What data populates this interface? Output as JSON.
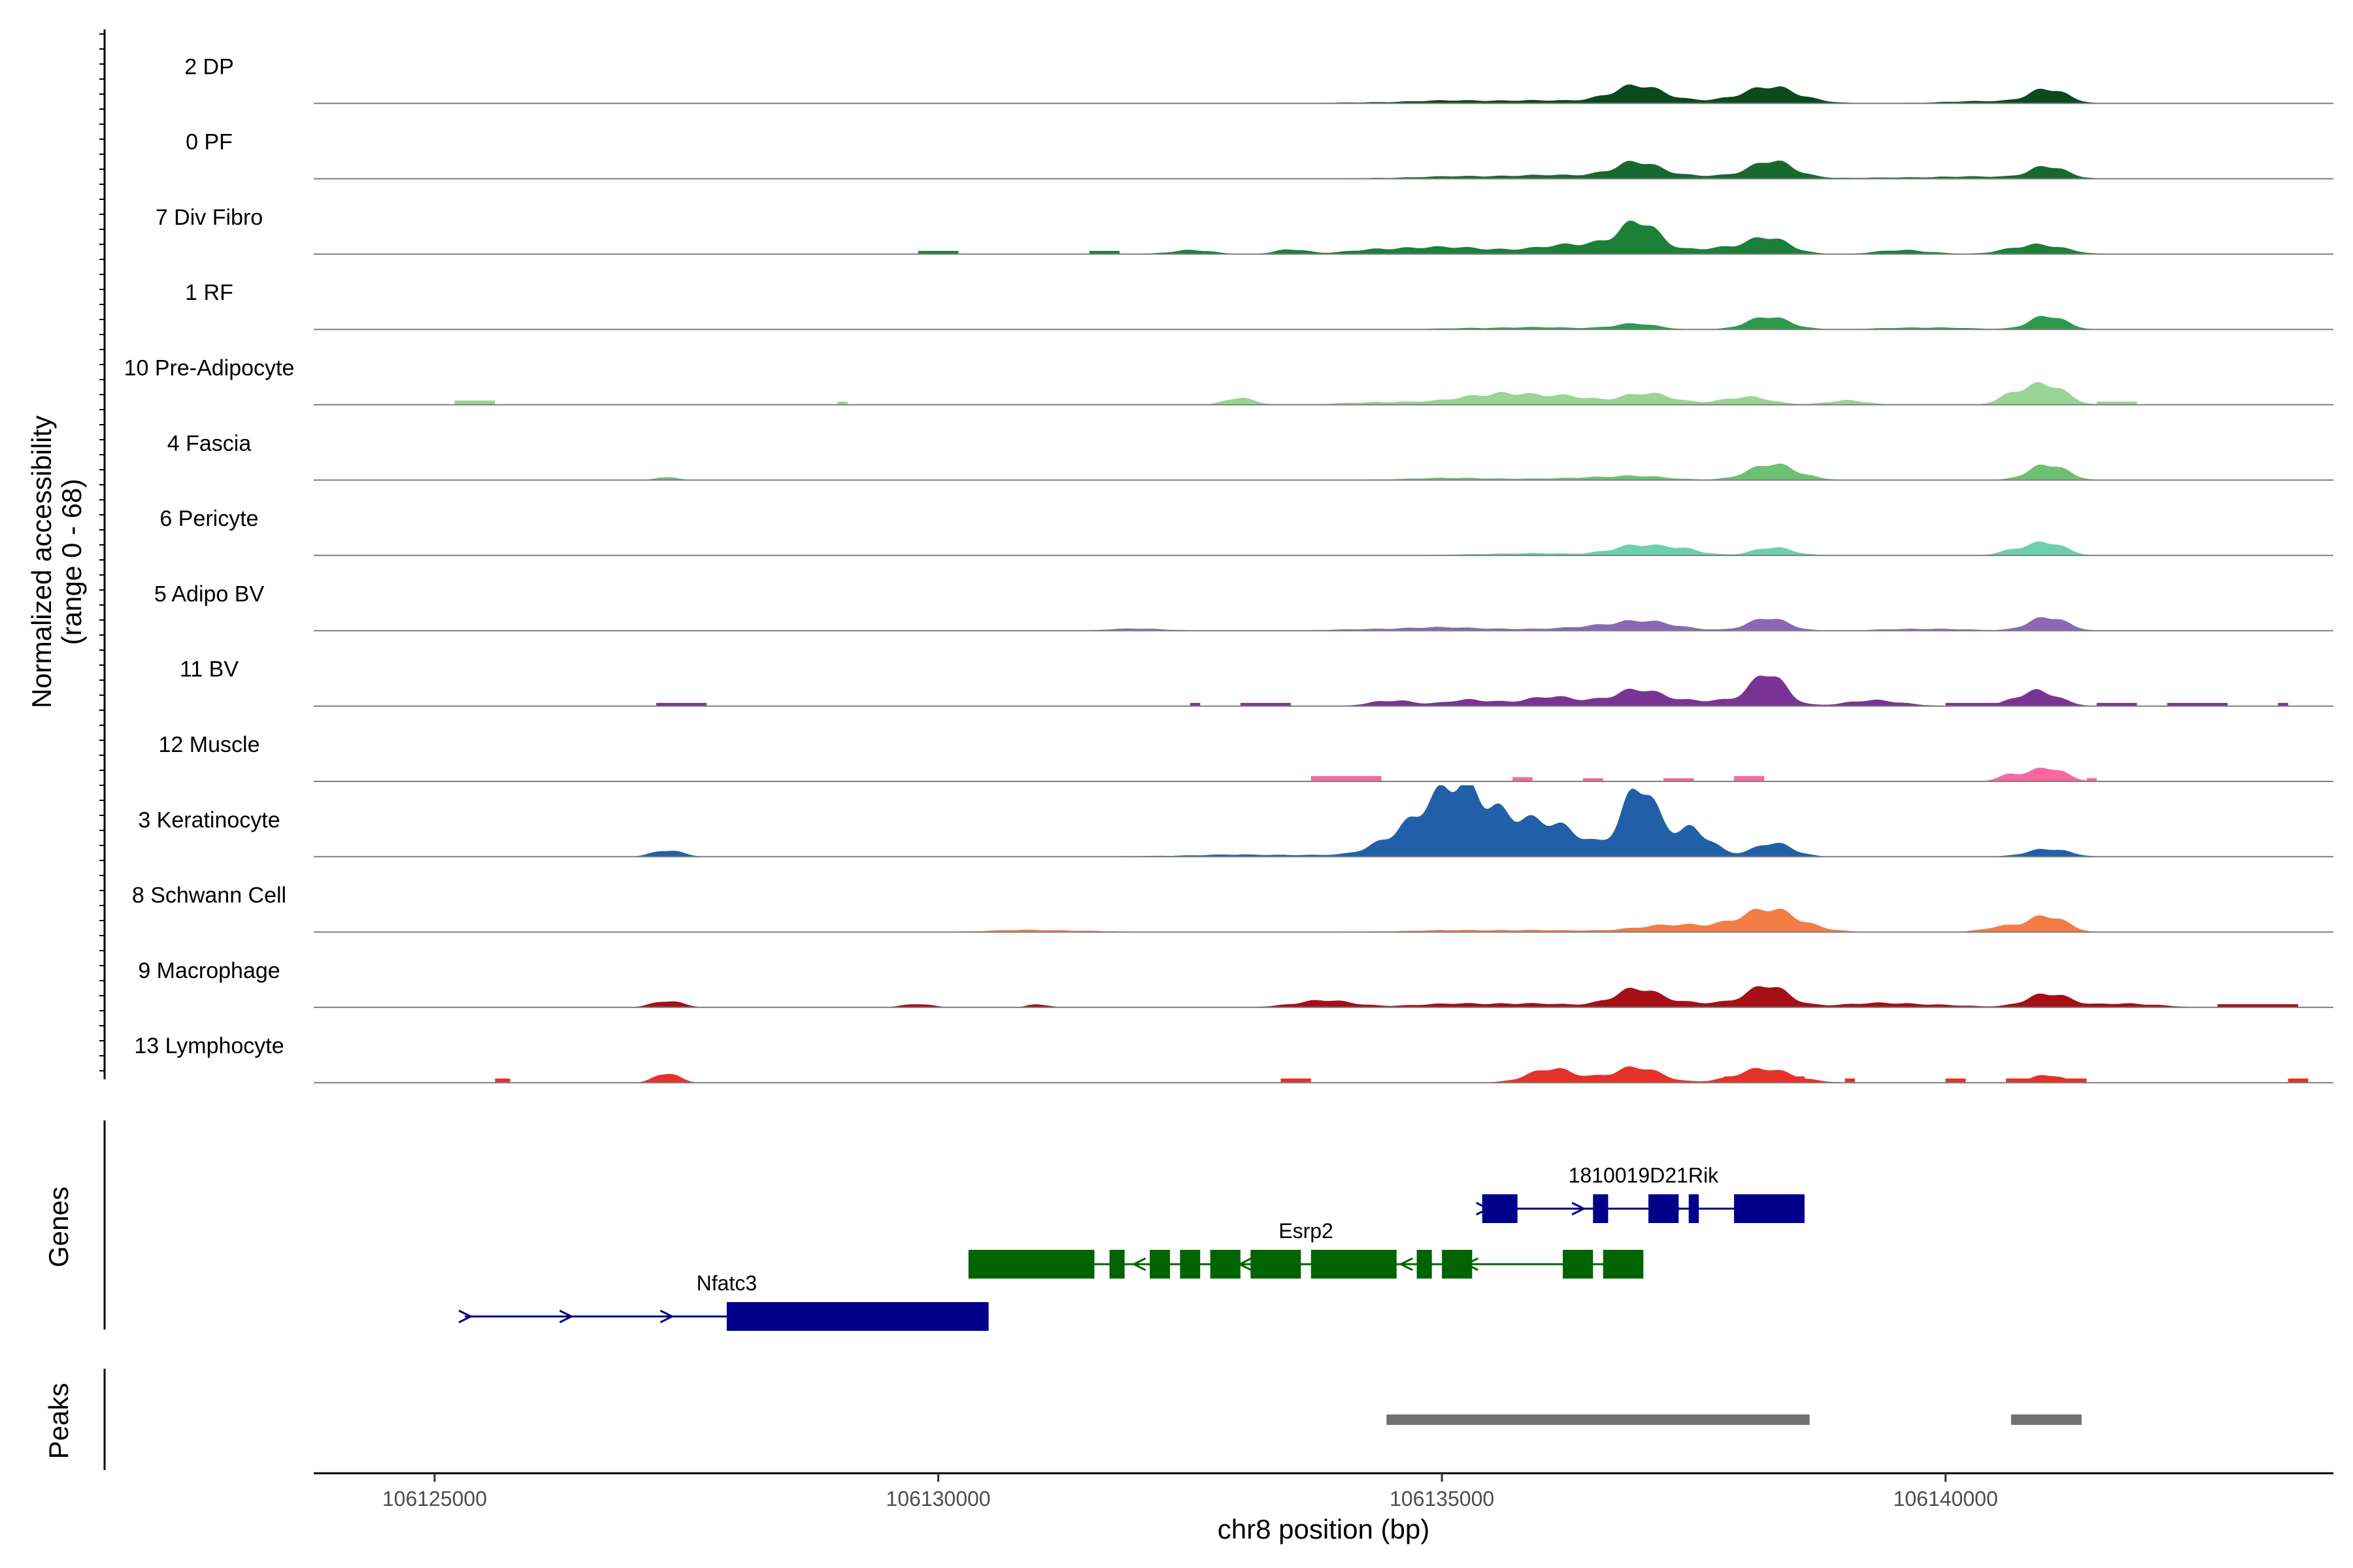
{
  "chart_data": {
    "type": "area",
    "subtype": "genome-coverage-tracks",
    "ylabel_lines": [
      "Normalized accessibility",
      "(range 0 - 68)"
    ],
    "y_range": [
      0,
      68
    ],
    "xlabel": "chr8 position (bp)",
    "x_range": [
      106123800,
      106143850
    ],
    "x_ticks": [
      106125000,
      106130000,
      106135000,
      106140000
    ],
    "x_tick_labels": [
      "106125000",
      "106130000",
      "106135000",
      "106140000"
    ],
    "genes_label": "Genes",
    "peaks_label": "Peaks",
    "tracks": [
      {
        "name": "2 DP",
        "color": "#0b4a1f",
        "peaks": [
          [
            106136900,
            250,
            14
          ],
          [
            106138300,
            280,
            13
          ],
          [
            106141000,
            180,
            14
          ],
          [
            106135500,
            900,
            3
          ],
          [
            106137600,
            600,
            3
          ],
          [
            106140400,
            500,
            2
          ]
        ],
        "blocks": []
      },
      {
        "name": "0 PF",
        "color": "#17692f",
        "peaks": [
          [
            106136900,
            220,
            12
          ],
          [
            106138300,
            220,
            14
          ],
          [
            106141000,
            170,
            12
          ],
          [
            106135800,
            900,
            3
          ],
          [
            106137500,
            700,
            3
          ],
          [
            106140200,
            700,
            2
          ]
        ],
        "blocks": []
      },
      {
        "name": "7 Div Fibro",
        "color": "#1c8038",
        "peaks": [
          [
            106136950,
            200,
            24
          ],
          [
            106136500,
            400,
            10
          ],
          [
            106138250,
            220,
            14
          ],
          [
            106137700,
            250,
            6
          ],
          [
            106140900,
            250,
            10
          ],
          [
            106135200,
            500,
            6
          ],
          [
            106133500,
            150,
            5
          ],
          [
            106132500,
            200,
            4
          ],
          [
            106134400,
            300,
            4
          ],
          [
            106139600,
            250,
            4
          ]
        ],
        "blocks": [
          [
            106129800,
            106130200,
            3
          ],
          [
            106131500,
            106131800,
            3
          ]
        ]
      },
      {
        "name": "1 RF",
        "color": "#2e9a4e",
        "peaks": [
          [
            106138250,
            220,
            11
          ],
          [
            106141000,
            170,
            14
          ],
          [
            106136900,
            220,
            5
          ],
          [
            106135800,
            600,
            2
          ],
          [
            106139800,
            400,
            2
          ]
        ],
        "blocks": []
      },
      {
        "name": "10 Pre-Adipocyte",
        "color": "#99d594",
        "peaks": [
          [
            106135600,
            350,
            12
          ],
          [
            106137000,
            300,
            10
          ],
          [
            106138000,
            250,
            7
          ],
          [
            106141000,
            180,
            20
          ],
          [
            106140700,
            150,
            10
          ],
          [
            106133000,
            150,
            6
          ],
          [
            106134500,
            400,
            3
          ],
          [
            106136300,
            200,
            6
          ],
          [
            106139000,
            200,
            4
          ]
        ],
        "blocks": [
          [
            106125200,
            106125600,
            4
          ],
          [
            106129000,
            106129100,
            3
          ],
          [
            106141500,
            106141900,
            3
          ]
        ]
      },
      {
        "name": "4 Fascia",
        "color": "#6dc173",
        "peaks": [
          [
            106138300,
            250,
            14
          ],
          [
            106141000,
            180,
            16
          ],
          [
            106136800,
            400,
            4
          ],
          [
            106135200,
            600,
            2
          ],
          [
            106127300,
            100,
            3
          ]
        ],
        "blocks": []
      },
      {
        "name": "6 Pericyte",
        "color": "#6ccfb0",
        "peaks": [
          [
            106136900,
            250,
            9
          ],
          [
            106137400,
            200,
            6
          ],
          [
            106138300,
            200,
            7
          ],
          [
            106141000,
            170,
            13
          ],
          [
            106140700,
            150,
            5
          ],
          [
            106135800,
            500,
            2
          ]
        ],
        "blocks": []
      },
      {
        "name": "5 Adipo BV",
        "color": "#8a68b3",
        "peaks": [
          [
            106136900,
            400,
            9
          ],
          [
            106138250,
            200,
            11
          ],
          [
            106141000,
            180,
            14
          ],
          [
            106135000,
            700,
            3
          ],
          [
            106132000,
            300,
            2
          ],
          [
            106139800,
            400,
            2
          ]
        ],
        "blocks": []
      },
      {
        "name": "11 BV",
        "color": "#7a3395",
        "peaks": [
          [
            106138250,
            170,
            26
          ],
          [
            106136900,
            250,
            14
          ],
          [
            106136100,
            300,
            8
          ],
          [
            106135300,
            250,
            6
          ],
          [
            106134500,
            200,
            6
          ],
          [
            106140900,
            200,
            16
          ],
          [
            106137700,
            400,
            6
          ],
          [
            106139300,
            300,
            5
          ]
        ],
        "blocks": [
          [
            106127200,
            106127700,
            3
          ],
          [
            106132500,
            106132600,
            3
          ],
          [
            106133000,
            106133500,
            3
          ],
          [
            106140000,
            106140600,
            3
          ],
          [
            106141500,
            106141900,
            3
          ],
          [
            106142200,
            106142800,
            3
          ],
          [
            106143300,
            106143400,
            3
          ]
        ]
      },
      {
        "name": "12 Muscle",
        "color": "#f768a1",
        "peaks": [
          [
            106141000,
            170,
            14
          ],
          [
            106140650,
            120,
            6
          ]
        ],
        "blocks": [
          [
            106133700,
            106134400,
            5
          ],
          [
            106135700,
            106135900,
            4
          ],
          [
            106136400,
            106136600,
            3
          ],
          [
            106137200,
            106137500,
            3
          ],
          [
            106137900,
            106138200,
            5
          ],
          [
            106141400,
            106141500,
            3
          ]
        ]
      },
      {
        "name": "3 Keratinocyte",
        "color": "#2160a8",
        "peaks": [
          [
            106135200,
            320,
            60
          ],
          [
            106136950,
            180,
            62
          ],
          [
            106134600,
            250,
            20
          ],
          [
            106135800,
            350,
            24
          ],
          [
            106136300,
            250,
            15
          ],
          [
            106137500,
            180,
            28
          ],
          [
            106138300,
            200,
            12
          ],
          [
            106141000,
            200,
            8
          ],
          [
            106127300,
            150,
            6
          ],
          [
            106133200,
            800,
            2
          ]
        ],
        "blocks": []
      },
      {
        "name": "8 Schwann Cell",
        "color": "#f47c45",
        "peaks": [
          [
            106138300,
            300,
            18
          ],
          [
            106137500,
            500,
            7
          ],
          [
            106141000,
            180,
            16
          ],
          [
            106140600,
            200,
            5
          ],
          [
            106135500,
            800,
            2
          ],
          [
            106131000,
            500,
            2
          ]
        ],
        "blocks": []
      },
      {
        "name": "9 Macrophage",
        "color": "#a50f15",
        "peaks": [
          [
            106136900,
            220,
            14
          ],
          [
            106138250,
            200,
            16
          ],
          [
            106141000,
            200,
            14
          ],
          [
            106133800,
            300,
            6
          ],
          [
            106135500,
            700,
            4
          ],
          [
            106137600,
            600,
            5
          ],
          [
            106139500,
            500,
            4
          ],
          [
            106141800,
            300,
            4
          ],
          [
            106127300,
            150,
            6
          ],
          [
            106129800,
            150,
            3
          ],
          [
            106131000,
            100,
            3
          ]
        ],
        "blocks": [
          [
            106142700,
            106143500,
            3
          ]
        ]
      },
      {
        "name": "13 Lymphocyte",
        "color": "#e53127",
        "peaks": [
          [
            106136900,
            250,
            14
          ],
          [
            106136100,
            250,
            12
          ],
          [
            106138200,
            300,
            12
          ],
          [
            106141000,
            150,
            8
          ],
          [
            106127300,
            120,
            9
          ]
        ],
        "blocks": [
          [
            106125600,
            106125750,
            4
          ],
          [
            106133400,
            106133700,
            4
          ],
          [
            106135900,
            106136600,
            5
          ],
          [
            106137800,
            106138600,
            6
          ],
          [
            106139000,
            106139100,
            4
          ],
          [
            106140000,
            106140200,
            4
          ],
          [
            106140600,
            106141400,
            4
          ],
          [
            106143400,
            106143600,
            4
          ]
        ]
      }
    ],
    "genes": [
      {
        "name": "1810019D21Rik",
        "strand": "+",
        "color": "#00008b",
        "row": 0,
        "start": 106135400,
        "end": 106138600,
        "exons": [
          [
            106135400,
            106135750
          ],
          [
            106136500,
            106136650
          ],
          [
            106137050,
            106137350
          ],
          [
            106137450,
            106137550
          ],
          [
            106137900,
            106138600
          ]
        ],
        "arrows": [
          106135400,
          106136350,
          106137300
        ]
      },
      {
        "name": "Esrp2",
        "strand": "-",
        "color": "#006400",
        "row": 1,
        "start": 106130300,
        "end": 106137000,
        "exons": [
          [
            106130300,
            106131550
          ],
          [
            106131700,
            106131850
          ],
          [
            106132100,
            106132300
          ],
          [
            106132400,
            106132600
          ],
          [
            106132700,
            106133000
          ],
          [
            106133100,
            106133600
          ],
          [
            106133700,
            106134550
          ],
          [
            106134750,
            106134900
          ],
          [
            106135000,
            106135300
          ],
          [
            106136200,
            106136500
          ],
          [
            106136600,
            106137000
          ]
        ],
        "arrows": [
          106132000,
          106133050,
          106134650,
          106135300
        ]
      },
      {
        "name": "Nfatc3",
        "strand": "+",
        "color": "#00008b",
        "row": 2,
        "start": 106125300,
        "end": 106130500,
        "exons": [
          [
            106127900,
            106130500
          ]
        ],
        "arrows": [
          106125300,
          106126300,
          106127300
        ]
      }
    ],
    "peak_regions": [
      [
        106134450,
        106138650
      ],
      [
        106140650,
        106141350
      ]
    ],
    "peak_color": "#707070"
  }
}
